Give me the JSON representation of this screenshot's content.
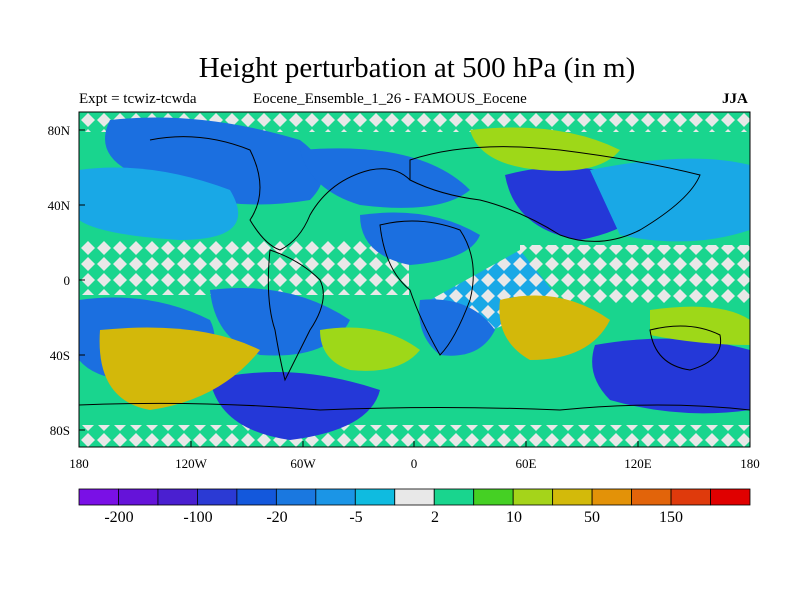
{
  "title": "Height perturbation at 500 hPa (in m)",
  "left_subtitle": "Expt = tcwiz-tcwda",
  "center_subtitle": "Eocene_Ensemble_1_26 - FAMOUS_Eocene",
  "right_subtitle": "JJA",
  "axes": {
    "x_ticks": [
      "180",
      "120W",
      "60W",
      "0",
      "60E",
      "120E",
      "180"
    ],
    "y_ticks": [
      "80N",
      "40N",
      "0",
      "40S",
      "80S"
    ]
  },
  "colorbar": {
    "labels": [
      "-200",
      "-100",
      "-20",
      "-5",
      "2",
      "10",
      "50",
      "150"
    ],
    "colors": [
      "#7a10e6",
      "#6513d9",
      "#4a1fd0",
      "#2b3ad4",
      "#1358dc",
      "#1a78e0",
      "#1b95e6",
      "#0fbbe0",
      "#e8e8e8",
      "#19d58e",
      "#45d024",
      "#a5d41a",
      "#d3ba0a",
      "#e39208",
      "#e2640a",
      "#df3a0c",
      "#e00000"
    ]
  },
  "map": {
    "field_colors": {
      "deep_negative": "#2438d8",
      "negative": "#1b6fe0",
      "weak_negative": "#19a8e6",
      "near_zero": "#e8e8e8",
      "weak_positive": "#19d58e",
      "positive": "#9ed818",
      "strong_positive": "#d3b80a"
    }
  }
}
